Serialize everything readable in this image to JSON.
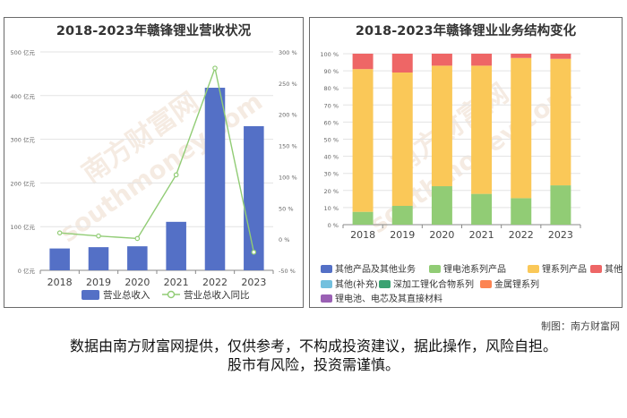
{
  "chart_data": [
    {
      "type": "bar",
      "title": "2018-2023年赣锋锂业营收状况",
      "categories": [
        "2018",
        "2019",
        "2020",
        "2021",
        "2022",
        "2023"
      ],
      "series": [
        {
          "name": "营业总收入",
          "type": "bar",
          "axis": "left",
          "values": [
            50.0,
            53.0,
            55.0,
            111.0,
            418.0,
            330.0
          ]
        },
        {
          "name": "营业总收入同比",
          "type": "line",
          "axis": "right",
          "values": [
            10.0,
            5.0,
            1.0,
            103.0,
            274.0,
            -21.0
          ]
        }
      ],
      "y_left": {
        "min": 0,
        "max": 500,
        "ticks": [
          "0 亿元",
          "100 亿元",
          "200 亿元",
          "300 亿元",
          "400 亿元",
          "500 亿元"
        ]
      },
      "y_right": {
        "min": -50,
        "max": 300,
        "ticks": [
          "-50 %",
          "0 %",
          "50 %",
          "100 %",
          "150 %",
          "200 %",
          "250 %",
          "300 %"
        ]
      },
      "grid": true,
      "legend": "bottom",
      "colors": {
        "bar": "#5470c6",
        "line": "#91cc75"
      }
    },
    {
      "type": "bar",
      "stacked": true,
      "title": "2018-2023年赣锋锂业业务结构变化",
      "categories": [
        "2018",
        "2019",
        "2020",
        "2021",
        "2022",
        "2023"
      ],
      "series": [
        {
          "name": "其他产品及其他业务",
          "color": "#5470c6",
          "values": [
            0,
            0,
            0,
            0,
            0,
            0
          ]
        },
        {
          "name": "锂电池系列产品",
          "color": "#91cc75",
          "values": [
            7.5,
            11,
            22.5,
            18,
            15.5,
            23
          ]
        },
        {
          "name": "锂系列产品",
          "color": "#fac858",
          "values": [
            83.5,
            78,
            70.5,
            75,
            82,
            74
          ]
        },
        {
          "name": "其他",
          "color": "#ee6666",
          "values": [
            9,
            11,
            7,
            7,
            2.5,
            3
          ]
        },
        {
          "name": "其他(补充)",
          "color": "#73c0de",
          "values": [
            0,
            0,
            0,
            0,
            0,
            0
          ]
        },
        {
          "name": "深加工锂化合物系列",
          "color": "#3ba272",
          "values": [
            0,
            0,
            0,
            0,
            0,
            0
          ]
        },
        {
          "name": "金属锂系列",
          "color": "#fc8452",
          "values": [
            0,
            0,
            0,
            0,
            0,
            0
          ]
        },
        {
          "name": "锂电池、电芯及其直接材料",
          "color": "#9a60b4",
          "values": [
            0,
            0,
            0,
            0,
            0,
            0
          ]
        }
      ],
      "y": {
        "min": 0,
        "max": 100,
        "ticks": [
          "0 %",
          "10 %",
          "20 %",
          "30 %",
          "40 %",
          "50 %",
          "60 %",
          "70 %",
          "80 %",
          "90 %",
          "100 %"
        ]
      },
      "grid": true,
      "legend": "bottom"
    }
  ],
  "watermark": {
    "cn": "南方财富网",
    "en": "southmoney.com"
  },
  "credit": "制图：南方财富网",
  "disclaimer": {
    "line1": "数据由南方财富网提供，仅供参考，不构成投资建议，据此操作，风险自担。",
    "line2": "股市有风险，投资需谨慎。"
  }
}
